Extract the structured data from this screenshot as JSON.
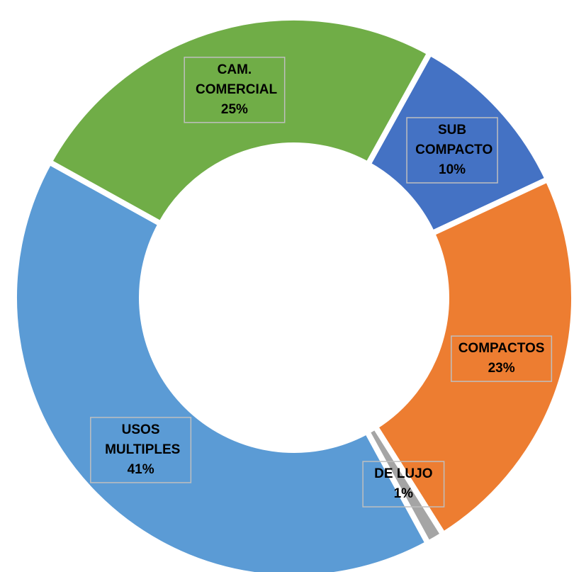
{
  "chart_data": {
    "type": "donut",
    "categories": [
      "SUB COMPACTO",
      "COMPACTOS",
      "DE LUJO",
      "USOS MULTIPLES",
      "CAM. COMERCIAL"
    ],
    "values": [
      10,
      23,
      1,
      41,
      25
    ],
    "value_labels": [
      "10%",
      "23%",
      "1%",
      "41%",
      "25%"
    ],
    "colors": [
      "#4472c4",
      "#ed7d31",
      "#a5a5a5",
      "#5b9bd5",
      "#70ad47"
    ]
  }
}
